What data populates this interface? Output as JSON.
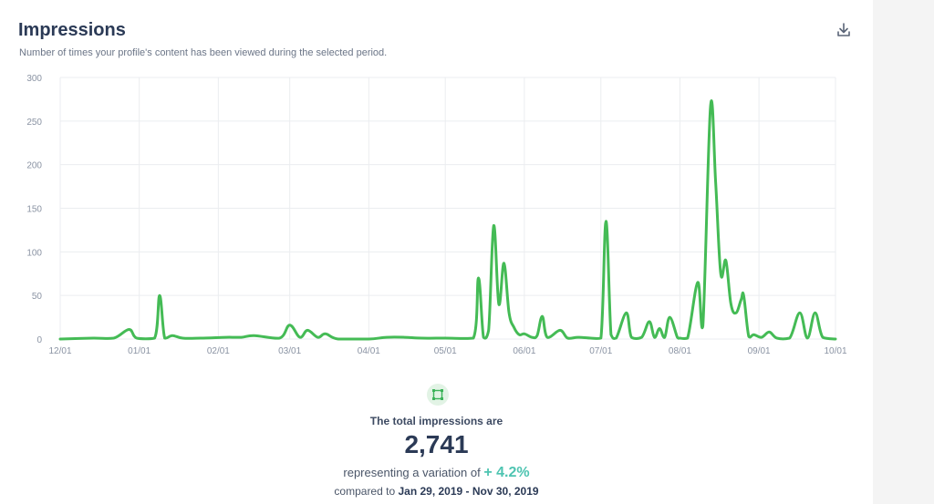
{
  "header": {
    "title": "Impressions",
    "subtitle": "Number of times your profile's content has been viewed during the selected period."
  },
  "icons": {
    "download": "download-icon",
    "summary": "crop-square-icon"
  },
  "colors": {
    "line": "#44bb55",
    "accent": "#4ec4b1",
    "title": "#2b3a56"
  },
  "chart_data": {
    "type": "line",
    "title": "",
    "xlabel": "",
    "ylabel": "",
    "ylim": [
      0,
      300
    ],
    "yticks": [
      "0",
      "50",
      "100",
      "150",
      "200",
      "250",
      "300"
    ],
    "xticks": [
      "12/01",
      "01/01",
      "02/01",
      "03/01",
      "04/01",
      "05/01",
      "06/01",
      "07/01",
      "08/01",
      "09/01",
      "10/01"
    ],
    "grid": true,
    "x_range": [
      "2018-12-01",
      "2019-10-01"
    ],
    "series": [
      {
        "values": [
          [
            "2018-12-01",
            0
          ],
          [
            "2018-12-14",
            1
          ],
          [
            "2018-12-22",
            1
          ],
          [
            "2018-12-28",
            11
          ],
          [
            "2018-12-31",
            1
          ],
          [
            "2019-01-07",
            1
          ],
          [
            "2019-01-09",
            50
          ],
          [
            "2019-01-11",
            1
          ],
          [
            "2019-01-14",
            4
          ],
          [
            "2019-01-18",
            1
          ],
          [
            "2019-01-25",
            1
          ],
          [
            "2019-02-04",
            2
          ],
          [
            "2019-02-10",
            2
          ],
          [
            "2019-02-15",
            4
          ],
          [
            "2019-02-25",
            1
          ],
          [
            "2019-03-01",
            16
          ],
          [
            "2019-03-05",
            2
          ],
          [
            "2019-03-08",
            10
          ],
          [
            "2019-03-12",
            2
          ],
          [
            "2019-03-15",
            6
          ],
          [
            "2019-03-20",
            0
          ],
          [
            "2019-04-01",
            0
          ],
          [
            "2019-04-08",
            2
          ],
          [
            "2019-04-15",
            2
          ],
          [
            "2019-04-22",
            1
          ],
          [
            "2019-05-01",
            1
          ],
          [
            "2019-05-12",
            1
          ],
          [
            "2019-05-14",
            70
          ],
          [
            "2019-05-16",
            2
          ],
          [
            "2019-05-18",
            10
          ],
          [
            "2019-05-20",
            130
          ],
          [
            "2019-05-22",
            40
          ],
          [
            "2019-05-24",
            87
          ],
          [
            "2019-05-26",
            30
          ],
          [
            "2019-05-28",
            13
          ],
          [
            "2019-05-30",
            5
          ],
          [
            "2019-06-01",
            6
          ],
          [
            "2019-06-04",
            2
          ],
          [
            "2019-06-06",
            4
          ],
          [
            "2019-06-08",
            26
          ],
          [
            "2019-06-10",
            2
          ],
          [
            "2019-06-15",
            10
          ],
          [
            "2019-06-18",
            1
          ],
          [
            "2019-06-22",
            2
          ],
          [
            "2019-06-27",
            1
          ],
          [
            "2019-07-01",
            1
          ],
          [
            "2019-07-03",
            135
          ],
          [
            "2019-07-05",
            5
          ],
          [
            "2019-07-07",
            1
          ],
          [
            "2019-07-11",
            30
          ],
          [
            "2019-07-13",
            2
          ],
          [
            "2019-07-17",
            2
          ],
          [
            "2019-07-20",
            20
          ],
          [
            "2019-07-22",
            2
          ],
          [
            "2019-07-24",
            12
          ],
          [
            "2019-07-26",
            2
          ],
          [
            "2019-07-28",
            25
          ],
          [
            "2019-07-31",
            2
          ],
          [
            "2019-08-01",
            1
          ],
          [
            "2019-08-04",
            1
          ],
          [
            "2019-08-08",
            65
          ],
          [
            "2019-08-10",
            15
          ],
          [
            "2019-08-13",
            267
          ],
          [
            "2019-08-15",
            180
          ],
          [
            "2019-08-17",
            75
          ],
          [
            "2019-08-19",
            90
          ],
          [
            "2019-08-21",
            40
          ],
          [
            "2019-08-23",
            30
          ],
          [
            "2019-08-25",
            45
          ],
          [
            "2019-08-26",
            50
          ],
          [
            "2019-08-28",
            3
          ],
          [
            "2019-08-30",
            5
          ],
          [
            "2019-09-02",
            2
          ],
          [
            "2019-09-05",
            8
          ],
          [
            "2019-09-08",
            1
          ],
          [
            "2019-09-13",
            1
          ],
          [
            "2019-09-17",
            30
          ],
          [
            "2019-09-20",
            1
          ],
          [
            "2019-09-23",
            30
          ],
          [
            "2019-09-26",
            2
          ],
          [
            "2019-10-01",
            0
          ]
        ]
      }
    ]
  },
  "summary": {
    "label": "The total impressions are",
    "total": "2,741",
    "variation_prefix": "representing a variation of",
    "variation_value": "+ 4.2%",
    "compare_prefix": "compared to",
    "compare_range": "Jan 29, 2019 - Nov 30, 2019"
  }
}
